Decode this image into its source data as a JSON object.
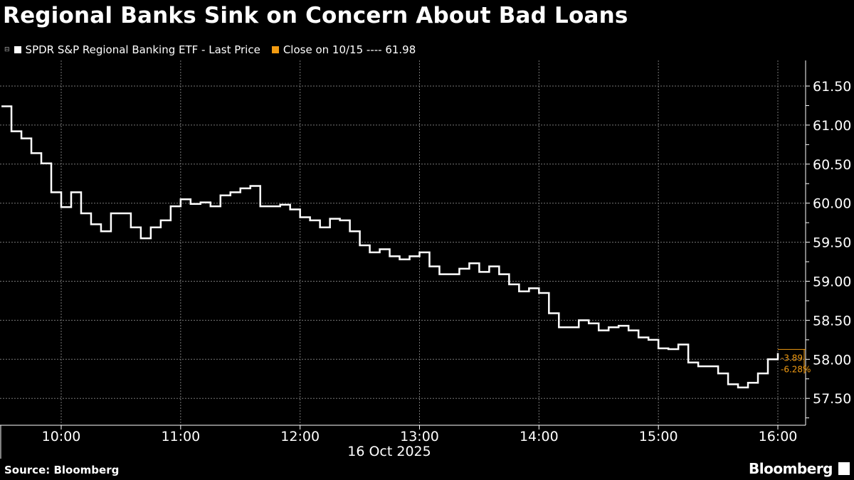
{
  "title": "Regional Banks Sink on Concern About Bad Loans",
  "legend": [
    {
      "label": "SPDR S&P Regional Banking ETF - Last Price",
      "color": "#ffffff"
    },
    {
      "label": "Close on 10/15 ---- 61.98",
      "color": "#f39c12"
    }
  ],
  "source": "Source: Bloomberg",
  "brand": "Bloomberg",
  "chart_data": {
    "type": "line",
    "title": "Regional Banks Sink on Concern About Bad Loans",
    "date_label": "16 Oct 2025",
    "x_ticks": [
      "10:00",
      "11:00",
      "12:00",
      "13:00",
      "14:00",
      "15:00",
      "16:00"
    ],
    "y_ticks": [
      "57.50",
      "58.00",
      "58.50",
      "59.00",
      "59.50",
      "60.00",
      "60.50",
      "61.00",
      "61.50"
    ],
    "ylim": [
      57.2,
      61.75
    ],
    "xlim": [
      "09:30",
      "16:10"
    ],
    "grid": true,
    "y_axis_side": "right",
    "reference_close": 61.98,
    "change_label": "-3.89",
    "change_pct_label": "-6.28%",
    "last_price": 58.09,
    "series": [
      {
        "name": "SPDR S&P Regional Banking ETF - Last Price",
        "color": "#ffffff",
        "x": [
          "09:30",
          "09:35",
          "09:40",
          "09:45",
          "09:50",
          "09:55",
          "10:00",
          "10:05",
          "10:10",
          "10:15",
          "10:20",
          "10:25",
          "10:30",
          "10:35",
          "10:40",
          "10:45",
          "10:50",
          "10:55",
          "11:00",
          "11:05",
          "11:10",
          "11:15",
          "11:20",
          "11:25",
          "11:30",
          "11:35",
          "11:40",
          "11:45",
          "11:50",
          "11:55",
          "12:00",
          "12:05",
          "12:10",
          "12:15",
          "12:20",
          "12:25",
          "12:30",
          "12:35",
          "12:40",
          "12:45",
          "12:50",
          "12:55",
          "13:00",
          "13:05",
          "13:10",
          "13:15",
          "13:20",
          "13:25",
          "13:30",
          "13:35",
          "13:40",
          "13:45",
          "13:50",
          "13:55",
          "14:00",
          "14:05",
          "14:10",
          "14:15",
          "14:20",
          "14:25",
          "14:30",
          "14:35",
          "14:40",
          "14:45",
          "14:50",
          "14:55",
          "15:00",
          "15:05",
          "15:10",
          "15:15",
          "15:20",
          "15:25",
          "15:30",
          "15:35",
          "15:40",
          "15:45",
          "15:50",
          "15:55",
          "16:00"
        ],
        "values": [
          61.24,
          60.92,
          60.83,
          60.64,
          60.51,
          60.14,
          59.95,
          60.14,
          59.87,
          59.73,
          59.64,
          59.87,
          59.87,
          59.69,
          59.55,
          59.69,
          59.78,
          59.96,
          60.05,
          59.99,
          60.01,
          59.96,
          60.1,
          60.14,
          60.19,
          60.22,
          59.96,
          59.96,
          59.98,
          59.92,
          59.82,
          59.78,
          59.69,
          59.8,
          59.78,
          59.64,
          59.46,
          59.37,
          59.41,
          59.32,
          59.28,
          59.32,
          59.37,
          59.19,
          59.09,
          59.09,
          59.16,
          59.23,
          59.12,
          59.19,
          59.09,
          58.96,
          58.87,
          58.91,
          58.85,
          58.59,
          58.41,
          58.41,
          58.5,
          58.46,
          58.37,
          58.41,
          58.43,
          58.37,
          58.28,
          58.25,
          58.14,
          58.13,
          58.19,
          57.96,
          57.91,
          57.91,
          57.82,
          57.68,
          57.64,
          57.7,
          57.82,
          58.0,
          58.08
        ]
      }
    ]
  }
}
